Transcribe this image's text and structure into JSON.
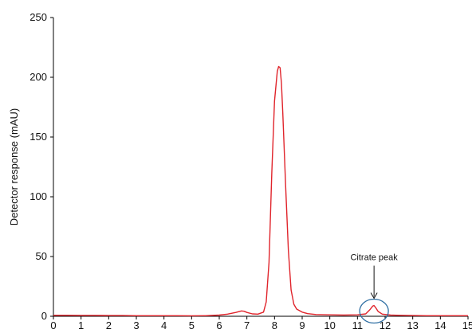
{
  "chart_data": {
    "type": "line",
    "title": "",
    "xlabel": "",
    "ylabel": "Detector response (mAU)",
    "xlim": [
      0,
      15
    ],
    "ylim": [
      0,
      250
    ],
    "x_ticks": [
      0,
      1,
      2,
      3,
      4,
      5,
      6,
      7,
      8,
      9,
      10,
      11,
      12,
      13,
      14,
      15
    ],
    "x_tick_labels": [
      "0",
      "1",
      "2",
      "3",
      "4",
      "5",
      "6",
      "7",
      "8",
      "9",
      "10",
      "11",
      "12",
      "13",
      "14",
      "15"
    ],
    "y_ticks": [
      0,
      50,
      100,
      150,
      200,
      250
    ],
    "y_tick_labels": [
      "0",
      "50",
      "100",
      "150",
      "200",
      "250"
    ],
    "grid": false,
    "line_color": "#e0242b",
    "series": [
      {
        "x": [
          0,
          0.5,
          1,
          1.5,
          2,
          2.5,
          3,
          3.5,
          4,
          4.5,
          5,
          5.5,
          6,
          6.3,
          6.6,
          6.8,
          6.9,
          7.0,
          7.2,
          7.4,
          7.6,
          7.7,
          7.8,
          7.9,
          8.0,
          8.1,
          8.15,
          8.2,
          8.25,
          8.3,
          8.4,
          8.5,
          8.6,
          8.7,
          8.8,
          9.0,
          9.2,
          9.5,
          10,
          10.5,
          11,
          11.3,
          11.45,
          11.55,
          11.6,
          11.65,
          11.75,
          11.9,
          12.2,
          12.5,
          13,
          13.5,
          14,
          14.5,
          15
        ],
        "y": [
          0.8,
          0.8,
          0.7,
          0.7,
          0.6,
          0.6,
          0.5,
          0.5,
          0.5,
          0.5,
          0.4,
          0.5,
          1.0,
          1.8,
          3.2,
          4.5,
          4.2,
          3.2,
          2.0,
          1.8,
          3.5,
          12,
          45,
          120,
          180,
          205,
          209,
          208,
          195,
          170,
          110,
          55,
          22,
          10,
          6,
          3.5,
          2.2,
          1.5,
          1.2,
          1.0,
          1.2,
          2.0,
          5.5,
          8.5,
          9.0,
          7.5,
          4.0,
          1.8,
          1.0,
          0.8,
          0.6,
          0.5,
          0.5,
          0.5,
          0.5
        ]
      }
    ],
    "annotations": [
      {
        "text": "Citrate peak",
        "x": 11.6,
        "y": 9.0
      }
    ]
  }
}
